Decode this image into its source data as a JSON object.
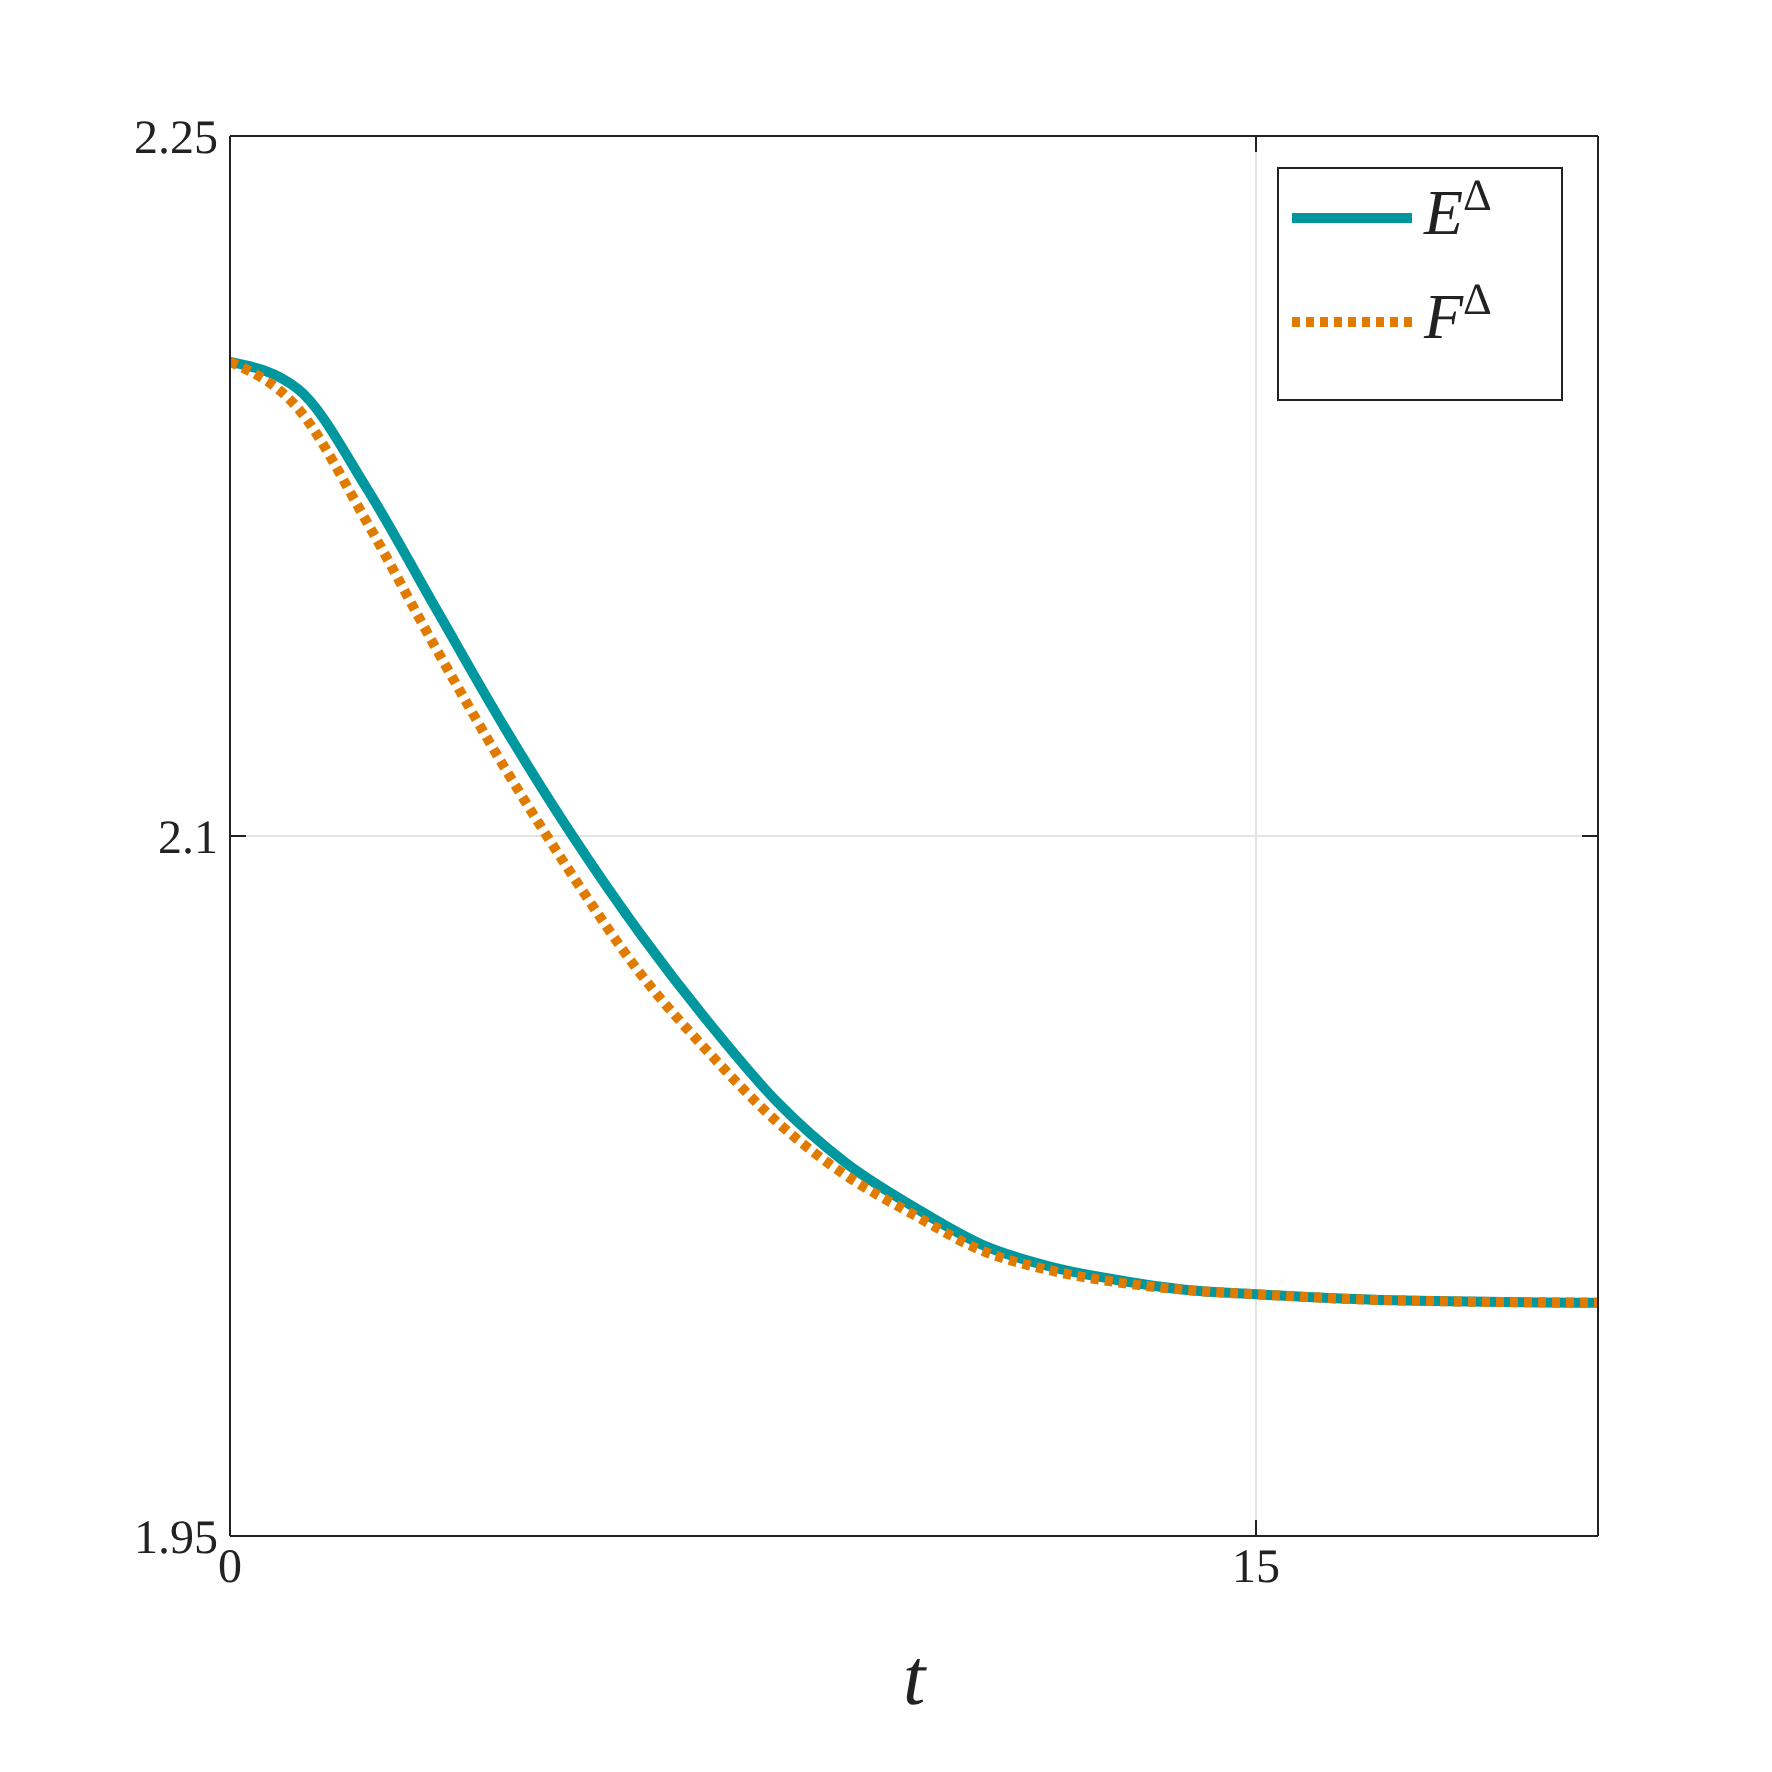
{
  "chart_data": {
    "type": "line",
    "xlabel": "t",
    "x": [
      0,
      1,
      2,
      3,
      4,
      5,
      6,
      7,
      8,
      9,
      10,
      11,
      12,
      13,
      14,
      15,
      17,
      20
    ],
    "series": [
      {
        "name": "E$^{Δ}$",
        "color": "#00979f",
        "line_style": "solid",
        "values": [
          2.2016,
          2.1957,
          2.1745,
          2.149,
          2.1236,
          2.1002,
          2.079,
          2.06,
          2.043,
          2.03,
          2.0205,
          2.0124,
          2.0077,
          2.0048,
          2.0027,
          2.0018,
          2.0005,
          2.0
        ]
      },
      {
        "name": "F$^{Δ}$",
        "color": "#e07b00",
        "line_style": "dotted",
        "values": [
          2.2016,
          2.1915,
          2.1673,
          2.1405,
          2.115,
          2.0917,
          2.0705,
          2.0536,
          2.0387,
          2.0273,
          2.0188,
          2.0111,
          2.0069,
          2.0043,
          2.0027,
          2.0018,
          2.0005,
          2.0
        ]
      }
    ],
    "xlim": [
      0,
      20
    ],
    "xticks": [
      0,
      15
    ],
    "ylim": [
      1.95,
      2.25
    ],
    "yticks": [
      1.95,
      2.1,
      2.25
    ],
    "grid": true,
    "legend": "top right",
    "marker": "none"
  }
}
